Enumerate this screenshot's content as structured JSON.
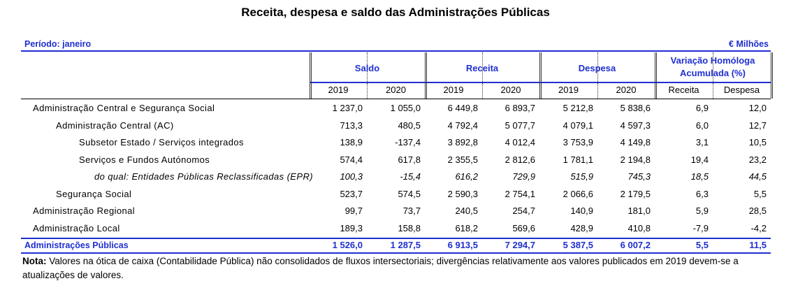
{
  "title": "Receita, despesa e saldo das Administrações Públicas",
  "period": "Período: janeiro",
  "unit": "€ Milhões",
  "header": {
    "groups": [
      "Saldo",
      "Receita",
      "Despesa",
      "Variação Homóloga Acumulada (%)"
    ],
    "subheaders": [
      "2019",
      "2020",
      "2019",
      "2020",
      "2019",
      "2020",
      "Receita",
      "Despesa"
    ]
  },
  "table": {
    "rows": [
      [
        "Administração Central e Segurança Social",
        "1 237,0",
        "1 055,0",
        "6 449,8",
        "6 893,7",
        "5 212,8",
        "5 838,6",
        "6,9",
        "12,0"
      ],
      [
        "Administração Central (AC)",
        "713,3",
        "480,5",
        "4 792,4",
        "5 077,7",
        "4 079,1",
        "4 597,3",
        "6,0",
        "12,7"
      ],
      [
        "Subsetor Estado / Serviços integrados",
        "138,9",
        "-137,4",
        "3 892,8",
        "4 012,4",
        "3 753,9",
        "4 149,8",
        "3,1",
        "10,5"
      ],
      [
        "Serviços e Fundos Autónomos",
        "574,4",
        "617,8",
        "2 355,5",
        "2 812,6",
        "1 781,1",
        "2 194,8",
        "19,4",
        "23,2"
      ],
      [
        "do qual: Entidades Públicas Reclassificadas (EPR)",
        "100,3",
        "-15,4",
        "616,2",
        "729,9",
        "515,9",
        "745,3",
        "18,5",
        "44,5"
      ],
      [
        "Segurança Social",
        "523,7",
        "574,5",
        "2 590,3",
        "2 754,1",
        "2 066,6",
        "2 179,5",
        "6,3",
        "5,5"
      ],
      [
        "Administração Regional",
        "99,7",
        "73,7",
        "240,5",
        "254,7",
        "140,9",
        "181,0",
        "5,9",
        "28,5"
      ],
      [
        "Administração Local",
        "189,3",
        "158,8",
        "618,2",
        "569,6",
        "428,9",
        "410,8",
        "-7,9",
        "-4,2"
      ]
    ],
    "total": [
      "Administrações Públicas",
      "1 526,0",
      "1 287,5",
      "6 913,5",
      "7 294,7",
      "5 387,5",
      "6 007,2",
      "5,5",
      "11,5"
    ]
  },
  "note": {
    "label": "Nota:",
    "text": "Valores na ótica de caixa (Contabilidade Pública) não consolidados de fluxos intersectoriais; divergências relativamente aos valores publicados em 2019 devem-se a atualizações de valores."
  }
}
